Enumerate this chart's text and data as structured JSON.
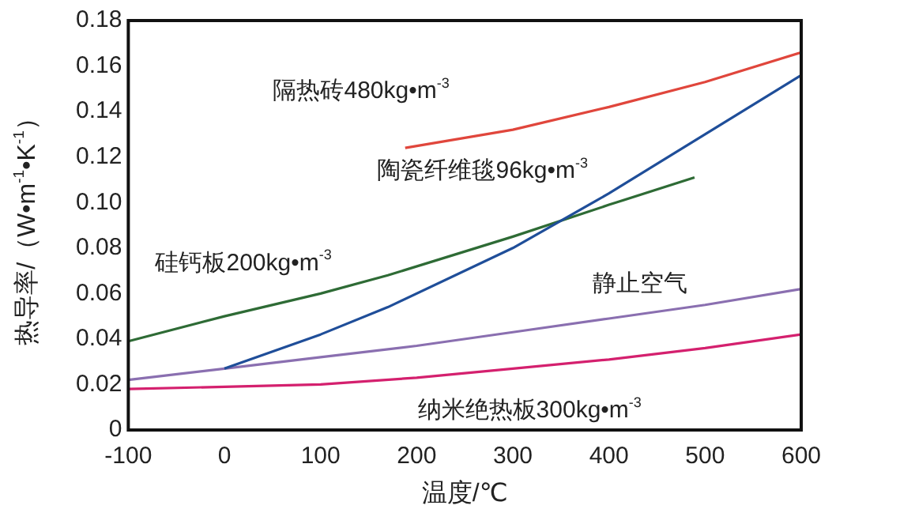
{
  "chart_data": {
    "type": "line",
    "xlabel": "温度/℃",
    "ylabel": "热导率/（W•m$^{-1}$•K$^{-1}$）",
    "xlim": [
      -100,
      600
    ],
    "xticks": [
      -100,
      0,
      100,
      200,
      300,
      400,
      500,
      600
    ],
    "ylim": [
      0,
      0.18
    ],
    "yticks": [
      0,
      0.02,
      0.04,
      0.06,
      0.08,
      {
        "value": 0.1,
        "label": "0.10"
      },
      0.12,
      0.14,
      0.16,
      0.18
    ],
    "grid": false,
    "legend": false,
    "marker": "none",
    "line_style": "solid",
    "series": [
      {
        "name": "隔热砖480kg•m$^{-3}$",
        "color": "#e0463c",
        "x": [
          188,
          300,
          400,
          500,
          600
        ],
        "values": [
          0.124,
          0.132,
          0.142,
          0.153,
          0.166
        ]
      },
      {
        "name": "陶瓷纤维毯96kg•m$^{-3}$",
        "color": "#1f4e99",
        "x": [
          0,
          100,
          170,
          300,
          400,
          500,
          600
        ],
        "values": [
          0.027,
          0.042,
          0.054,
          0.08,
          0.104,
          0.13,
          0.156
        ]
      },
      {
        "name": "硅钙板200kg•m$^{-3}$",
        "color": "#2e6b35",
        "x": [
          -100,
          0,
          100,
          170,
          300,
          400,
          489
        ],
        "values": [
          0.039,
          0.05,
          0.06,
          0.068,
          0.085,
          0.099,
          0.111
        ]
      },
      {
        "name": "静止空气",
        "color": "#8a6fb0",
        "x": [
          -100,
          0,
          100,
          200,
          300,
          400,
          500,
          600
        ],
        "values": [
          0.022,
          0.027,
          0.032,
          0.037,
          0.043,
          0.049,
          0.055,
          0.062
        ]
      },
      {
        "name": "纳米绝热板300kg•m$^{-3}$",
        "color": "#d4206e",
        "x": [
          -100,
          0,
          100,
          200,
          300,
          400,
          500,
          600
        ],
        "values": [
          0.018,
          0.019,
          0.02,
          0.023,
          0.027,
          0.031,
          0.036,
          0.042
        ]
      }
    ]
  }
}
